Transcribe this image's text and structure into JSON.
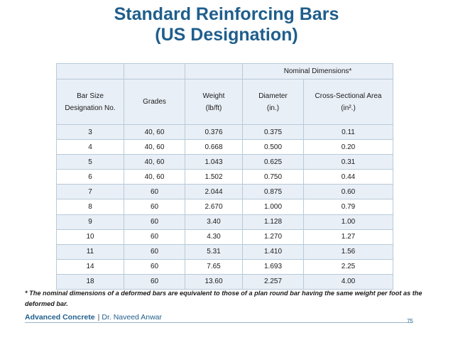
{
  "slide": {
    "title_line1": "Standard Reinforcing Bars",
    "title_line2": "(US Designation)",
    "footnote": "* The nominal dimensions of a deformed bars  are equivalent to those of a plan round bar having the same weight per foot as the deformed bar.",
    "footer": {
      "course": "Advanced Concrete",
      "separator": "|",
      "author": "Dr. Naveed Anwar"
    },
    "page_number": "75"
  },
  "table": {
    "group_header": "Nominal Dimensions*",
    "columns": [
      {
        "line1": "Bar Size",
        "line2": "Designation No."
      },
      {
        "line1": "Grades",
        "line2": ""
      },
      {
        "line1": "Weight",
        "line2": "(lb/ft)"
      },
      {
        "line1": "Diameter",
        "line2": "(in.)"
      },
      {
        "line1": "Cross-Sectional Area",
        "line2": "(in².)"
      }
    ],
    "rows": [
      [
        "3",
        "40, 60",
        "0.376",
        "0.375",
        "0.11"
      ],
      [
        "4",
        "40, 60",
        "0.668",
        "0.500",
        "0.20"
      ],
      [
        "5",
        "40, 60",
        "1.043",
        "0.625",
        "0.31"
      ],
      [
        "6",
        "40, 60",
        "1.502",
        "0.750",
        "0.44"
      ],
      [
        "7",
        "60",
        "2.044",
        "0.875",
        "0.60"
      ],
      [
        "8",
        "60",
        "2.670",
        "1.000",
        "0.79"
      ],
      [
        "9",
        "60",
        "3.40",
        "1.128",
        "1.00"
      ],
      [
        "10",
        "60",
        "4.30",
        "1.270",
        "1.27"
      ],
      [
        "11",
        "60",
        "5.31",
        "1.410",
        "1.56"
      ],
      [
        "14",
        "60",
        "7.65",
        "1.693",
        "2.25"
      ],
      [
        "18",
        "60",
        "13.60",
        "2.257",
        "4.00"
      ]
    ]
  },
  "colors": {
    "title": "#1f5e8c",
    "header_fill": "#e9eff6",
    "border": "#b7cad9"
  }
}
